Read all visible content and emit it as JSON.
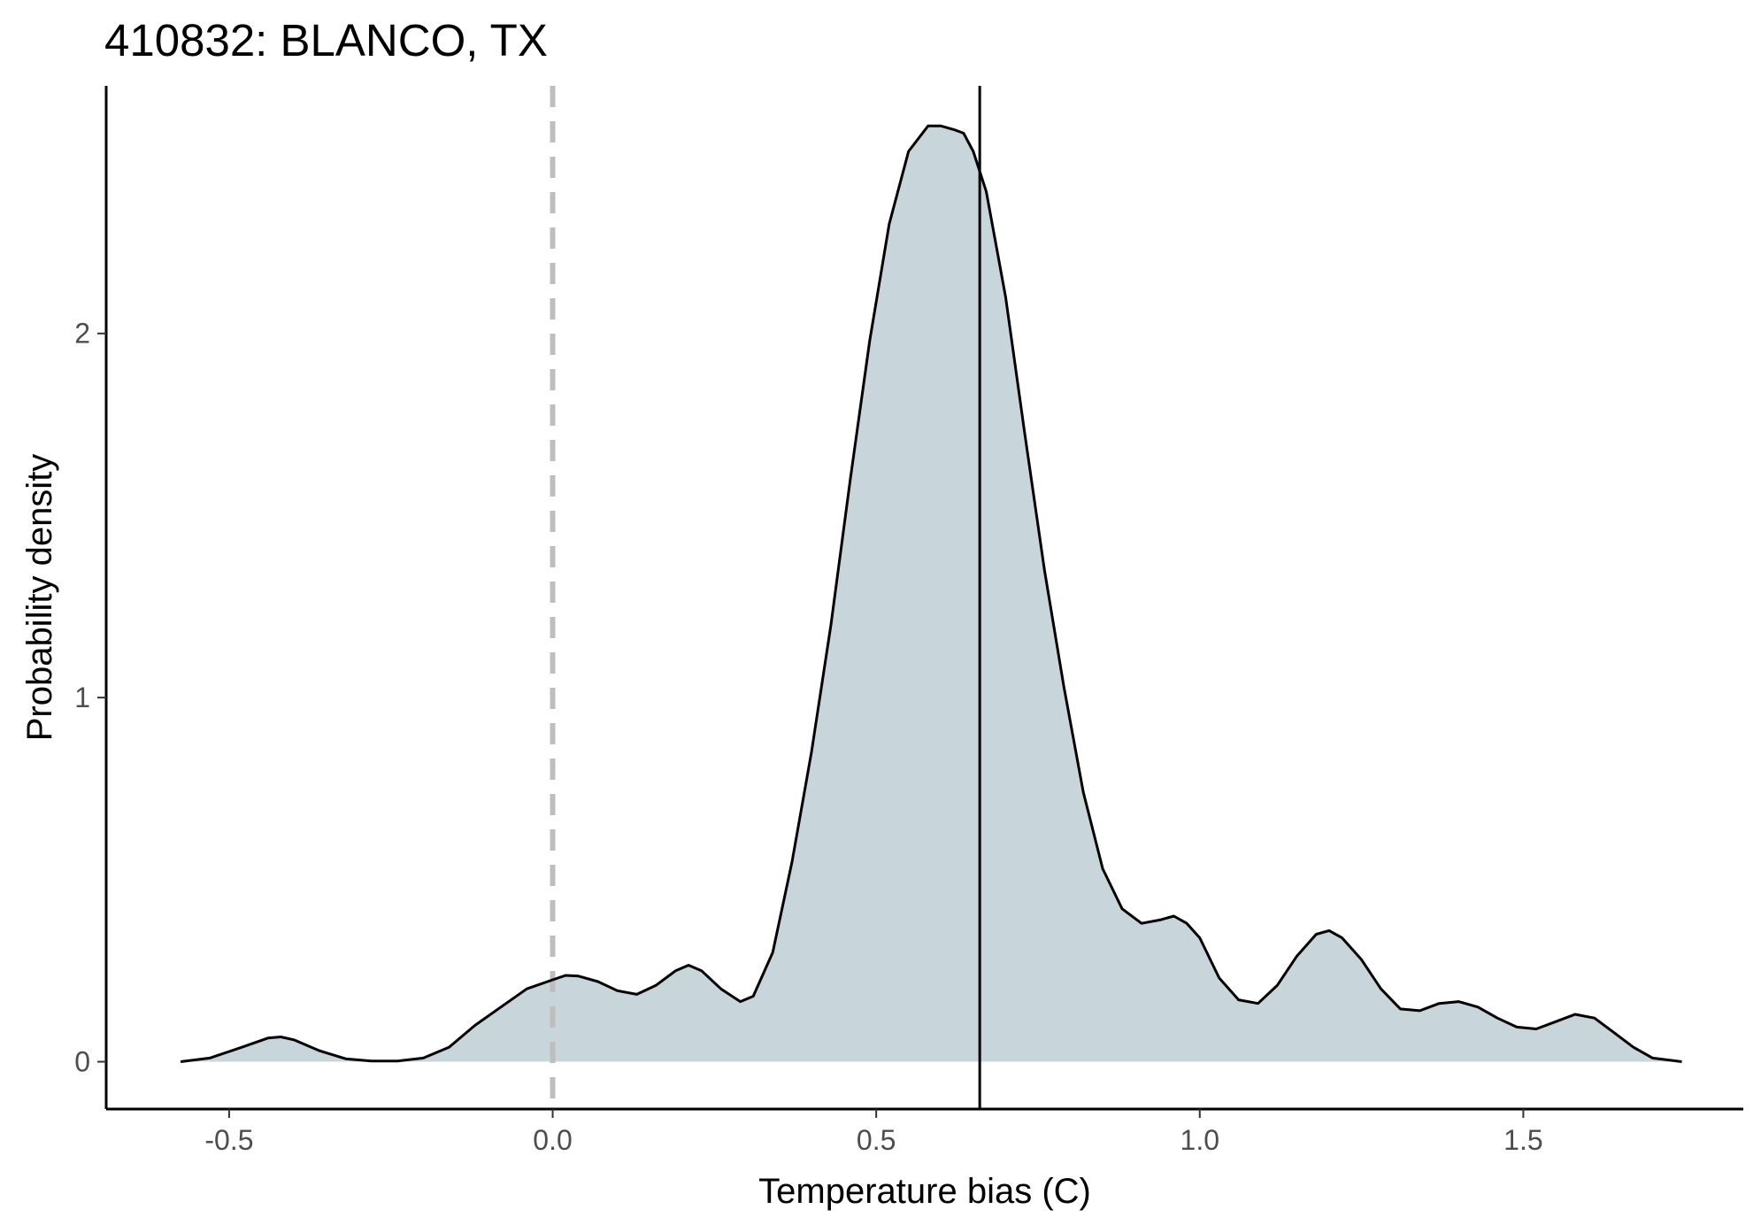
{
  "chart_data": {
    "type": "area",
    "title": "410832: BLANCO, TX",
    "xlabel": "Temperature bias (C)",
    "ylabel": "Probability density",
    "xlim": [
      -0.69,
      1.84
    ],
    "ylim": [
      -0.13,
      2.68
    ],
    "x_ticks": [
      -0.5,
      0.0,
      0.5,
      1.0,
      1.5
    ],
    "x_tick_labels": [
      "-0.5",
      "0.0",
      "0.5",
      "1.0",
      "1.5"
    ],
    "y_ticks": [
      0,
      1,
      2
    ],
    "y_tick_labels": [
      "0",
      "1",
      "2"
    ],
    "grid": false,
    "legend": "none",
    "series": [
      {
        "x": [
          -0.575,
          -0.53,
          -0.48,
          -0.44,
          -0.42,
          -0.4,
          -0.36,
          -0.32,
          -0.28,
          -0.24,
          -0.2,
          -0.16,
          -0.12,
          -0.08,
          -0.04,
          0.0,
          0.02,
          0.04,
          0.07,
          0.1,
          0.13,
          0.16,
          0.19,
          0.21,
          0.23,
          0.26,
          0.29,
          0.31,
          0.34,
          0.37,
          0.4,
          0.43,
          0.46,
          0.49,
          0.52,
          0.55,
          0.58,
          0.6,
          0.62,
          0.635,
          0.65,
          0.67,
          0.7,
          0.73,
          0.76,
          0.79,
          0.82,
          0.85,
          0.88,
          0.91,
          0.94,
          0.96,
          0.98,
          1.0,
          1.03,
          1.06,
          1.09,
          1.12,
          1.15,
          1.18,
          1.2,
          1.22,
          1.25,
          1.28,
          1.31,
          1.34,
          1.37,
          1.4,
          1.43,
          1.46,
          1.49,
          1.52,
          1.55,
          1.58,
          1.61,
          1.64,
          1.67,
          1.7,
          1.745
        ],
        "y": [
          0.0,
          0.01,
          0.04,
          0.065,
          0.068,
          0.06,
          0.03,
          0.008,
          0.002,
          0.002,
          0.01,
          0.04,
          0.1,
          0.15,
          0.2,
          0.225,
          0.237,
          0.235,
          0.22,
          0.195,
          0.185,
          0.21,
          0.25,
          0.265,
          0.25,
          0.2,
          0.165,
          0.18,
          0.3,
          0.55,
          0.85,
          1.2,
          1.6,
          1.98,
          2.3,
          2.5,
          2.57,
          2.57,
          2.56,
          2.55,
          2.5,
          2.39,
          2.1,
          1.72,
          1.35,
          1.03,
          0.74,
          0.53,
          0.42,
          0.38,
          0.39,
          0.4,
          0.38,
          0.34,
          0.23,
          0.17,
          0.16,
          0.21,
          0.29,
          0.35,
          0.36,
          0.34,
          0.28,
          0.2,
          0.145,
          0.14,
          0.16,
          0.165,
          0.15,
          0.12,
          0.095,
          0.09,
          0.11,
          0.13,
          0.12,
          0.08,
          0.04,
          0.01,
          0.0
        ]
      }
    ],
    "reference_lines": [
      {
        "orientation": "vertical",
        "x": 0.0,
        "style": "dashed",
        "color": "#bebebe"
      },
      {
        "orientation": "vertical",
        "x": 0.66,
        "style": "solid",
        "color": "#000000"
      }
    ],
    "colors": {
      "fill": "#c8d5db",
      "line": "#000000",
      "axis": "#000000",
      "tick_label": "#4d4d4d"
    }
  }
}
